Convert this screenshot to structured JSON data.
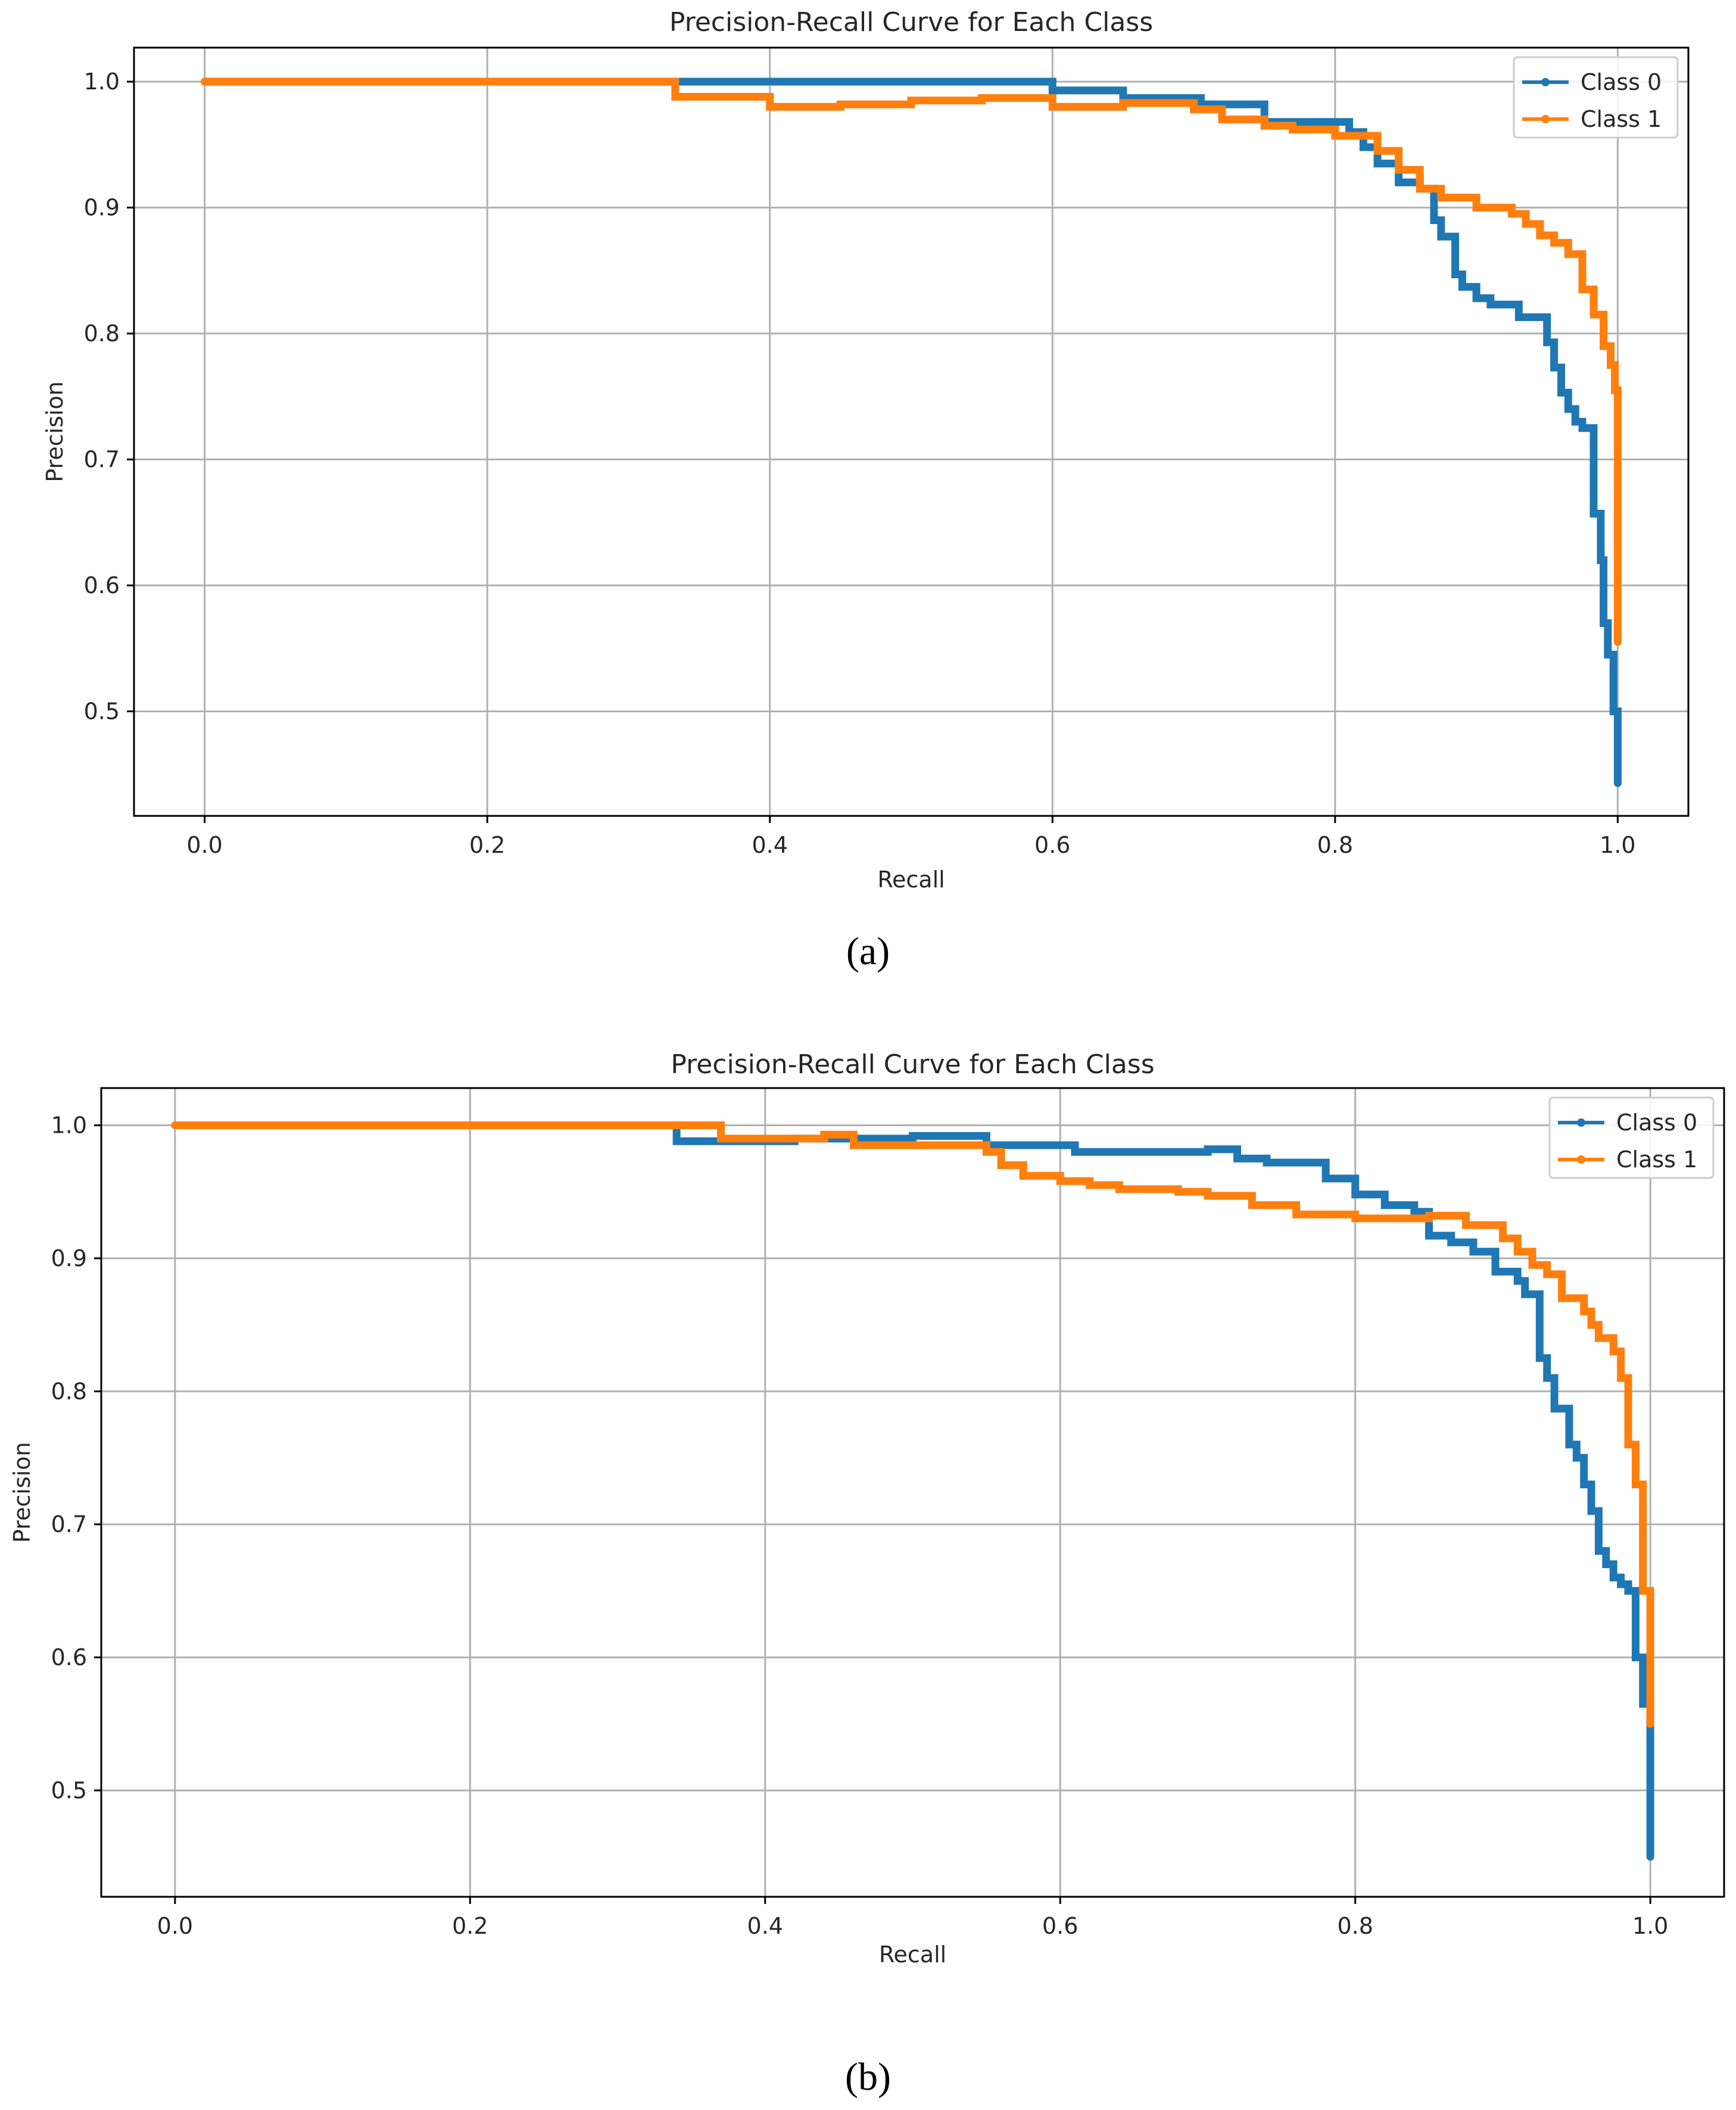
{
  "chart_data": [
    {
      "type": "line",
      "caption": "(a)",
      "title": "Precision-Recall Curve for Each Class",
      "xlabel": "Recall",
      "ylabel": "Precision",
      "xlim": [
        -0.05,
        1.05
      ],
      "ylim": [
        0.417,
        1.027
      ],
      "xticks": [
        0.0,
        0.2,
        0.4,
        0.6,
        0.8,
        1.0
      ],
      "xtick_labels": [
        "0.0",
        "0.2",
        "0.4",
        "0.6",
        "0.8",
        "1.0"
      ],
      "yticks": [
        0.5,
        0.6,
        0.7,
        0.8,
        0.9,
        1.0
      ],
      "ytick_labels": [
        "0.5",
        "0.6",
        "0.7",
        "0.8",
        "0.9",
        "1.0"
      ],
      "grid": true,
      "legend_position": "top-right",
      "series": [
        {
          "name": "Class 0",
          "color": "#1f77b4",
          "x": [
            0.0,
            0.333,
            0.333,
            0.6,
            0.6,
            0.65,
            0.65,
            0.705,
            0.705,
            0.75,
            0.75,
            0.81,
            0.81,
            0.82,
            0.82,
            0.83,
            0.83,
            0.845,
            0.845,
            0.86,
            0.86,
            0.87,
            0.87,
            0.875,
            0.875,
            0.885,
            0.885,
            0.89,
            0.89,
            0.9,
            0.9,
            0.91,
            0.91,
            0.93,
            0.93,
            0.95,
            0.95,
            0.955,
            0.955,
            0.96,
            0.96,
            0.965,
            0.965,
            0.97,
            0.97,
            0.975,
            0.975,
            0.983,
            0.983,
            0.988,
            0.988,
            0.99,
            0.99,
            0.993,
            0.993,
            0.997,
            0.997,
            1.0,
            1.0
          ],
          "y": [
            1.0,
            1.0,
            1.0,
            1.0,
            0.993,
            0.993,
            0.987,
            0.987,
            0.982,
            0.982,
            0.968,
            0.968,
            0.96,
            0.96,
            0.948,
            0.948,
            0.935,
            0.935,
            0.92,
            0.92,
            0.915,
            0.915,
            0.89,
            0.89,
            0.877,
            0.877,
            0.847,
            0.847,
            0.837,
            0.837,
            0.828,
            0.828,
            0.823,
            0.823,
            0.813,
            0.813,
            0.793,
            0.793,
            0.773,
            0.773,
            0.753,
            0.753,
            0.74,
            0.74,
            0.73,
            0.73,
            0.725,
            0.725,
            0.657,
            0.657,
            0.62,
            0.62,
            0.57,
            0.57,
            0.545,
            0.545,
            0.5,
            0.5,
            0.443
          ]
        },
        {
          "name": "Class 1",
          "color": "#ff7f0e",
          "x": [
            0.0,
            0.333,
            0.333,
            0.4,
            0.4,
            0.45,
            0.45,
            0.5,
            0.5,
            0.55,
            0.55,
            0.6,
            0.6,
            0.65,
            0.65,
            0.7,
            0.7,
            0.72,
            0.72,
            0.75,
            0.75,
            0.77,
            0.77,
            0.8,
            0.8,
            0.83,
            0.83,
            0.845,
            0.845,
            0.86,
            0.86,
            0.875,
            0.875,
            0.9,
            0.9,
            0.925,
            0.925,
            0.935,
            0.935,
            0.945,
            0.945,
            0.955,
            0.955,
            0.965,
            0.965,
            0.975,
            0.975,
            0.983,
            0.983,
            0.99,
            0.99,
            0.995,
            0.995,
            0.998,
            0.998,
            1.0,
            1.0
          ],
          "y": [
            1.0,
            1.0,
            0.988,
            0.988,
            0.98,
            0.98,
            0.982,
            0.982,
            0.985,
            0.985,
            0.987,
            0.987,
            0.98,
            0.98,
            0.983,
            0.983,
            0.978,
            0.978,
            0.97,
            0.97,
            0.965,
            0.965,
            0.962,
            0.962,
            0.957,
            0.957,
            0.945,
            0.945,
            0.93,
            0.93,
            0.915,
            0.915,
            0.908,
            0.908,
            0.9,
            0.9,
            0.895,
            0.895,
            0.887,
            0.887,
            0.878,
            0.878,
            0.872,
            0.872,
            0.863,
            0.863,
            0.835,
            0.835,
            0.815,
            0.815,
            0.79,
            0.79,
            0.775,
            0.775,
            0.755,
            0.755,
            0.555
          ]
        }
      ]
    },
    {
      "type": "line",
      "caption": "(b)",
      "title": "Precision-Recall Curve for Each Class",
      "xlabel": "Recall",
      "ylabel": "Precision",
      "xlim": [
        -0.05,
        1.05
      ],
      "ylim": [
        0.42,
        1.028
      ],
      "xticks": [
        0.0,
        0.2,
        0.4,
        0.6,
        0.8,
        1.0
      ],
      "xtick_labels": [
        "0.0",
        "0.2",
        "0.4",
        "0.6",
        "0.8",
        "1.0"
      ],
      "yticks": [
        0.5,
        0.6,
        0.7,
        0.8,
        0.9,
        1.0
      ],
      "ytick_labels": [
        "0.5",
        "0.6",
        "0.7",
        "0.8",
        "0.9",
        "1.0"
      ],
      "grid": true,
      "legend_position": "top-right",
      "series": [
        {
          "name": "Class 0",
          "color": "#1f77b4",
          "x": [
            0.0,
            0.34,
            0.34,
            0.42,
            0.42,
            0.46,
            0.46,
            0.5,
            0.5,
            0.55,
            0.55,
            0.58,
            0.58,
            0.61,
            0.61,
            0.65,
            0.65,
            0.7,
            0.7,
            0.72,
            0.72,
            0.74,
            0.74,
            0.78,
            0.78,
            0.8,
            0.8,
            0.82,
            0.82,
            0.84,
            0.84,
            0.85,
            0.85,
            0.865,
            0.865,
            0.88,
            0.88,
            0.895,
            0.895,
            0.91,
            0.91,
            0.915,
            0.915,
            0.925,
            0.925,
            0.93,
            0.93,
            0.935,
            0.935,
            0.945,
            0.945,
            0.95,
            0.95,
            0.955,
            0.955,
            0.96,
            0.96,
            0.965,
            0.965,
            0.97,
            0.97,
            0.975,
            0.975,
            0.98,
            0.98,
            0.985,
            0.985,
            0.99,
            0.99,
            0.995,
            0.995,
            1.0,
            1.0
          ],
          "y": [
            1.0,
            1.0,
            0.988,
            0.988,
            0.99,
            0.99,
            0.99,
            0.99,
            0.992,
            0.992,
            0.985,
            0.985,
            0.985,
            0.985,
            0.98,
            0.98,
            0.98,
            0.98,
            0.982,
            0.982,
            0.975,
            0.975,
            0.972,
            0.972,
            0.96,
            0.96,
            0.948,
            0.948,
            0.94,
            0.94,
            0.935,
            0.935,
            0.917,
            0.917,
            0.912,
            0.912,
            0.905,
            0.905,
            0.89,
            0.89,
            0.883,
            0.883,
            0.873,
            0.873,
            0.825,
            0.825,
            0.81,
            0.81,
            0.787,
            0.787,
            0.76,
            0.76,
            0.75,
            0.75,
            0.73,
            0.73,
            0.71,
            0.71,
            0.68,
            0.68,
            0.67,
            0.67,
            0.66,
            0.66,
            0.655,
            0.655,
            0.65,
            0.65,
            0.6,
            0.6,
            0.565,
            0.565,
            0.45
          ]
        },
        {
          "name": "Class 1",
          "color": "#ff7f0e",
          "x": [
            0.0,
            0.37,
            0.37,
            0.44,
            0.44,
            0.46,
            0.46,
            0.55,
            0.55,
            0.56,
            0.56,
            0.575,
            0.575,
            0.6,
            0.6,
            0.62,
            0.62,
            0.64,
            0.64,
            0.68,
            0.68,
            0.7,
            0.7,
            0.73,
            0.73,
            0.76,
            0.76,
            0.8,
            0.8,
            0.85,
            0.85,
            0.875,
            0.875,
            0.9,
            0.9,
            0.91,
            0.91,
            0.92,
            0.92,
            0.93,
            0.93,
            0.94,
            0.94,
            0.955,
            0.955,
            0.96,
            0.96,
            0.965,
            0.965,
            0.975,
            0.975,
            0.98,
            0.98,
            0.985,
            0.985,
            0.99,
            0.99,
            0.995,
            0.995,
            1.0,
            1.0
          ],
          "y": [
            1.0,
            1.0,
            0.99,
            0.99,
            0.993,
            0.993,
            0.985,
            0.985,
            0.98,
            0.98,
            0.97,
            0.97,
            0.962,
            0.962,
            0.958,
            0.958,
            0.955,
            0.955,
            0.952,
            0.952,
            0.95,
            0.95,
            0.947,
            0.947,
            0.94,
            0.94,
            0.933,
            0.933,
            0.93,
            0.93,
            0.932,
            0.932,
            0.925,
            0.925,
            0.915,
            0.915,
            0.905,
            0.905,
            0.895,
            0.895,
            0.888,
            0.888,
            0.87,
            0.87,
            0.86,
            0.86,
            0.85,
            0.85,
            0.84,
            0.84,
            0.83,
            0.83,
            0.81,
            0.81,
            0.76,
            0.76,
            0.73,
            0.73,
            0.65,
            0.65,
            0.55
          ]
        }
      ]
    }
  ]
}
